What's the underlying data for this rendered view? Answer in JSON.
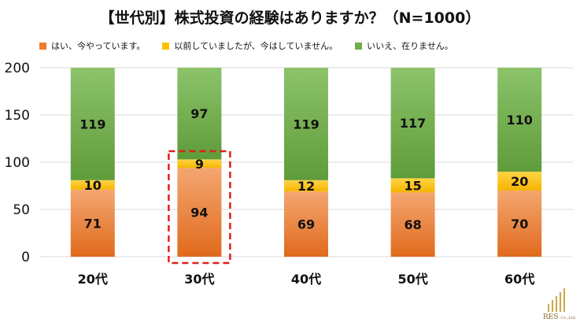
{
  "chart_data": {
    "type": "bar",
    "stacked": true,
    "title": "【世代別】株式投資の経験はありますか？（N=1000）",
    "categories": [
      "20代",
      "30代",
      "40代",
      "50代",
      "60代"
    ],
    "series": [
      {
        "name": "はい、今やっています。",
        "color": "#ed7d31",
        "values": [
          71,
          94,
          69,
          68,
          70
        ]
      },
      {
        "name": "以前していましたが、今はしていません。",
        "color": "#ffc000",
        "values": [
          10,
          9,
          12,
          15,
          20
        ]
      },
      {
        "name": "いいえ、在りません。",
        "color": "#70ad47",
        "values": [
          119,
          97,
          119,
          117,
          110
        ]
      }
    ],
    "ylim": [
      0,
      200
    ],
    "yticks": [
      0,
      50,
      100,
      150,
      200
    ],
    "grid": true,
    "legend": "top",
    "highlight_category": "30代"
  },
  "logo": {
    "name": "RES",
    "suffix": "Co.,Ltd."
  }
}
